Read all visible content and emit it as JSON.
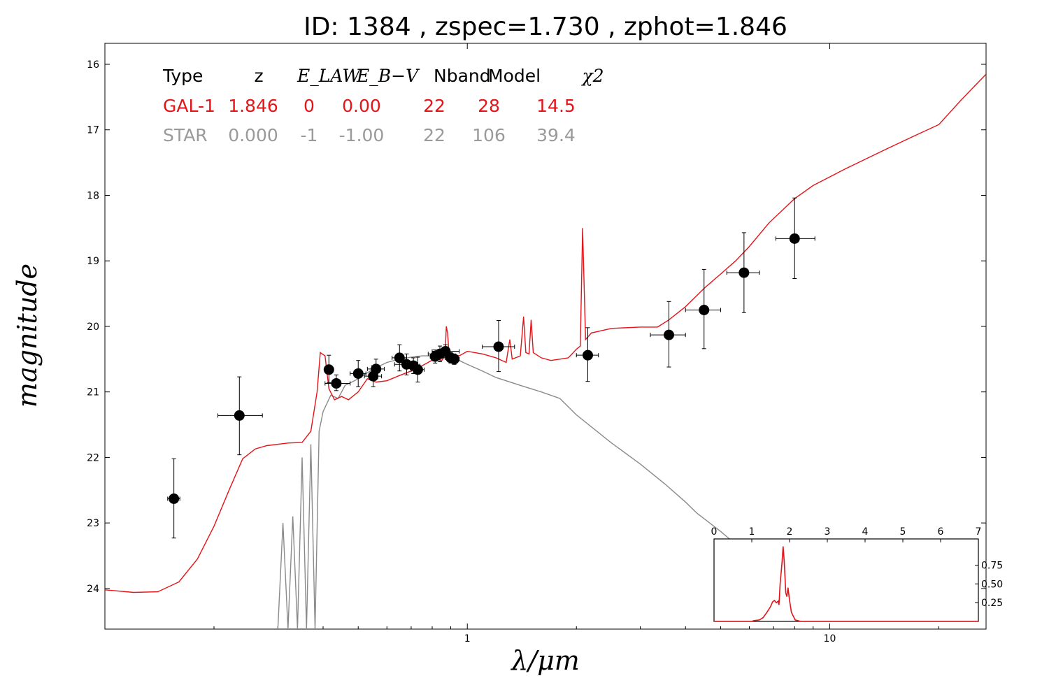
{
  "chart_data": {
    "type": "scatter",
    "title": "ID:  1384  , zspec=1.730 , zphot=1.846",
    "xlabel": "λ/μm",
    "ylabel": "magnitude",
    "xscale": "log",
    "xlim": [
      0.1,
      27
    ],
    "ylim": [
      24.62,
      15.68
    ],
    "x_ticks": [
      {
        "v": 1,
        "label": "1"
      },
      {
        "v": 10,
        "label": "10"
      }
    ],
    "y_ticks": [
      16,
      17,
      18,
      19,
      20,
      21,
      22,
      23,
      24
    ],
    "fit_table": {
      "headers": [
        "Type",
        "z",
        "E_LAW",
        "E_B−V",
        "Nband",
        "Model",
        "χ2"
      ],
      "rows": [
        {
          "key": "gal",
          "cells": [
            "GAL-1",
            "1.846",
            "0",
            "0.00",
            "22",
            "28",
            "14.5"
          ],
          "color": "#e3141a"
        },
        {
          "key": "star",
          "cells": [
            "STAR",
            "0.000",
            "-1",
            "-1.00",
            "22",
            "106",
            "39.4"
          ],
          "color": "#9a9a9a"
        }
      ]
    },
    "photometry": [
      {
        "x": 0.155,
        "y": 22.63,
        "xerr": [
          0.149,
          0.161
        ],
        "yerr": [
          22.02,
          23.23
        ]
      },
      {
        "x": 0.235,
        "y": 21.36,
        "xerr": [
          0.205,
          0.272
        ],
        "yerr": [
          20.77,
          21.96
        ]
      },
      {
        "x": 0.415,
        "y": 20.66,
        "xerr": [
          0.405,
          0.425
        ],
        "yerr": [
          20.44,
          20.86
        ]
      },
      {
        "x": 0.435,
        "y": 20.87,
        "xerr": [
          0.405,
          0.475
        ],
        "yerr": [
          20.74,
          20.98
        ]
      },
      {
        "x": 0.5,
        "y": 20.72,
        "xerr": [
          0.475,
          0.525
        ],
        "yerr": [
          20.52,
          20.92
        ]
      },
      {
        "x": 0.55,
        "y": 20.76,
        "xerr": [
          0.52,
          0.58
        ],
        "yerr": [
          20.6,
          20.92
        ]
      },
      {
        "x": 0.56,
        "y": 20.65,
        "xerr": [
          0.53,
          0.59
        ],
        "yerr": [
          20.5,
          20.8
        ]
      },
      {
        "x": 0.65,
        "y": 20.48,
        "xerr": [
          0.62,
          0.68
        ],
        "yerr": [
          20.28,
          20.68
        ]
      },
      {
        "x": 0.68,
        "y": 20.58,
        "xerr": [
          0.63,
          0.73
        ],
        "yerr": [
          20.42,
          20.74
        ]
      },
      {
        "x": 0.71,
        "y": 20.6,
        "xerr": [
          0.68,
          0.74
        ],
        "yerr": [
          20.48,
          20.72
        ]
      },
      {
        "x": 0.73,
        "y": 20.66,
        "xerr": [
          0.7,
          0.76
        ],
        "yerr": [
          20.47,
          20.85
        ]
      },
      {
        "x": 0.815,
        "y": 20.46,
        "xerr": [
          0.79,
          0.84
        ],
        "yerr": [
          20.36,
          20.56
        ]
      },
      {
        "x": 0.84,
        "y": 20.42,
        "xerr": [
          0.78,
          0.89
        ],
        "yerr": [
          20.3,
          20.54
        ]
      },
      {
        "x": 0.87,
        "y": 20.38,
        "xerr": [
          0.8,
          0.95
        ],
        "yerr": [
          20.28,
          20.48
        ]
      },
      {
        "x": 0.9,
        "y": 20.48,
        "xerr": [
          0.87,
          0.93
        ],
        "yerr": [
          20.4,
          20.56
        ]
      },
      {
        "x": 0.92,
        "y": 20.5,
        "xerr": [
          0.89,
          0.95
        ],
        "yerr": [
          20.42,
          20.58
        ]
      },
      {
        "x": 1.22,
        "y": 20.31,
        "xerr": [
          1.1,
          1.35
        ],
        "yerr": [
          19.91,
          20.69
        ]
      },
      {
        "x": 2.15,
        "y": 20.44,
        "xerr": [
          2.0,
          2.3
        ],
        "yerr": [
          20.02,
          20.84
        ]
      },
      {
        "x": 3.6,
        "y": 20.13,
        "xerr": [
          3.2,
          4.0
        ],
        "yerr": [
          19.62,
          20.62
        ]
      },
      {
        "x": 4.5,
        "y": 19.75,
        "xerr": [
          4.0,
          5.0
        ],
        "yerr": [
          19.13,
          20.34
        ]
      },
      {
        "x": 5.8,
        "y": 19.18,
        "xerr": [
          5.2,
          6.4
        ],
        "yerr": [
          18.57,
          19.79
        ]
      },
      {
        "x": 8.0,
        "y": 18.66,
        "xerr": [
          7.1,
          9.1
        ],
        "yerr": [
          18.04,
          19.27
        ]
      }
    ],
    "series": [
      {
        "name": "GAL-1",
        "color": "#e3141a",
        "points": [
          [
            0.1,
            24.02
          ],
          [
            0.12,
            24.06
          ],
          [
            0.14,
            24.05
          ],
          [
            0.16,
            23.9
          ],
          [
            0.18,
            23.55
          ],
          [
            0.2,
            23.05
          ],
          [
            0.22,
            22.5
          ],
          [
            0.24,
            22.02
          ],
          [
            0.26,
            21.87
          ],
          [
            0.28,
            21.82
          ],
          [
            0.32,
            21.78
          ],
          [
            0.35,
            21.77
          ],
          [
            0.37,
            21.6
          ],
          [
            0.385,
            21.0
          ],
          [
            0.393,
            20.4
          ],
          [
            0.405,
            20.45
          ],
          [
            0.415,
            20.95
          ],
          [
            0.43,
            21.12
          ],
          [
            0.45,
            21.07
          ],
          [
            0.47,
            21.12
          ],
          [
            0.5,
            21.0
          ],
          [
            0.53,
            20.8
          ],
          [
            0.56,
            20.85
          ],
          [
            0.6,
            20.83
          ],
          [
            0.65,
            20.75
          ],
          [
            0.7,
            20.68
          ],
          [
            0.75,
            20.6
          ],
          [
            0.78,
            20.55
          ],
          [
            0.82,
            20.48
          ],
          [
            0.85,
            20.52
          ],
          [
            0.868,
            20.45
          ],
          [
            0.875,
            20.0
          ],
          [
            0.882,
            20.1
          ],
          [
            0.89,
            20.4
          ],
          [
            0.95,
            20.45
          ],
          [
            1.0,
            20.38
          ],
          [
            1.1,
            20.42
          ],
          [
            1.2,
            20.48
          ],
          [
            1.28,
            20.55
          ],
          [
            1.31,
            20.2
          ],
          [
            1.33,
            20.5
          ],
          [
            1.4,
            20.45
          ],
          [
            1.43,
            19.85
          ],
          [
            1.45,
            20.4
          ],
          [
            1.48,
            20.42
          ],
          [
            1.5,
            19.9
          ],
          [
            1.52,
            20.4
          ],
          [
            1.6,
            20.48
          ],
          [
            1.7,
            20.52
          ],
          [
            1.8,
            20.5
          ],
          [
            1.9,
            20.48
          ],
          [
            2.0,
            20.35
          ],
          [
            2.05,
            20.3
          ],
          [
            2.08,
            18.5
          ],
          [
            2.12,
            20.2
          ],
          [
            2.2,
            20.1
          ],
          [
            2.5,
            20.03
          ],
          [
            3.0,
            20.01
          ],
          [
            3.35,
            20.01
          ],
          [
            3.6,
            19.9
          ],
          [
            4.0,
            19.7
          ],
          [
            4.5,
            19.42
          ],
          [
            5.0,
            19.2
          ],
          [
            5.5,
            19.0
          ],
          [
            6.0,
            18.78
          ],
          [
            6.8,
            18.42
          ],
          [
            8.0,
            18.05
          ],
          [
            9.0,
            17.85
          ],
          [
            11.0,
            17.6
          ],
          [
            14.0,
            17.32
          ],
          [
            17.0,
            17.1
          ],
          [
            20.0,
            16.92
          ],
          [
            23.0,
            16.55
          ],
          [
            27.0,
            16.15
          ]
        ]
      },
      {
        "name": "STAR",
        "color": "#8a8a8a",
        "points": [
          [
            0.3,
            24.62
          ],
          [
            0.31,
            23.0
          ],
          [
            0.32,
            24.62
          ],
          [
            0.33,
            22.9
          ],
          [
            0.34,
            24.62
          ],
          [
            0.35,
            22.0
          ],
          [
            0.36,
            24.62
          ],
          [
            0.37,
            21.8
          ],
          [
            0.38,
            24.62
          ],
          [
            0.39,
            21.6
          ],
          [
            0.4,
            21.3
          ],
          [
            0.42,
            21.05
          ],
          [
            0.44,
            21.1
          ],
          [
            0.46,
            20.9
          ],
          [
            0.48,
            20.85
          ],
          [
            0.5,
            20.8
          ],
          [
            0.55,
            20.65
          ],
          [
            0.6,
            20.55
          ],
          [
            0.65,
            20.5
          ],
          [
            0.7,
            20.47
          ],
          [
            0.75,
            20.45
          ],
          [
            0.8,
            20.45
          ],
          [
            0.85,
            20.46
          ],
          [
            0.9,
            20.48
          ],
          [
            0.95,
            20.52
          ],
          [
            1.0,
            20.58
          ],
          [
            1.1,
            20.68
          ],
          [
            1.2,
            20.78
          ],
          [
            1.4,
            20.9
          ],
          [
            1.6,
            21.0
          ],
          [
            1.8,
            21.1
          ],
          [
            2.0,
            21.35
          ],
          [
            2.5,
            21.78
          ],
          [
            3.0,
            22.1
          ],
          [
            3.5,
            22.4
          ],
          [
            4.0,
            22.68
          ],
          [
            4.3,
            22.85
          ],
          [
            5.0,
            23.13
          ],
          [
            6.0,
            23.5
          ],
          [
            7.0,
            23.8
          ],
          [
            8.0,
            24.05
          ],
          [
            8.8,
            24.22
          ]
        ]
      }
    ],
    "inset": {
      "x_ticks": [
        "0",
        "1",
        "2",
        "3",
        "4",
        "5",
        "6",
        "7"
      ],
      "y_ticks": [
        "0.25",
        "0.50",
        "0.75"
      ],
      "xlim": [
        0,
        7
      ],
      "ylim": [
        0,
        1.1
      ],
      "curve": [
        [
          0,
          0
        ],
        [
          1.0,
          0
        ],
        [
          1.05,
          0.01
        ],
        [
          1.2,
          0.02
        ],
        [
          1.3,
          0.05
        ],
        [
          1.4,
          0.12
        ],
        [
          1.5,
          0.2
        ],
        [
          1.55,
          0.26
        ],
        [
          1.6,
          0.28
        ],
        [
          1.65,
          0.25
        ],
        [
          1.7,
          0.27
        ],
        [
          1.72,
          0.22
        ],
        [
          1.75,
          0.5
        ],
        [
          1.8,
          0.78
        ],
        [
          1.83,
          1.0
        ],
        [
          1.86,
          0.8
        ],
        [
          1.9,
          0.38
        ],
        [
          1.93,
          0.33
        ],
        [
          1.96,
          0.45
        ],
        [
          2.0,
          0.28
        ],
        [
          2.05,
          0.12
        ],
        [
          2.15,
          0.02
        ],
        [
          2.3,
          0
        ],
        [
          7,
          0
        ]
      ]
    }
  }
}
